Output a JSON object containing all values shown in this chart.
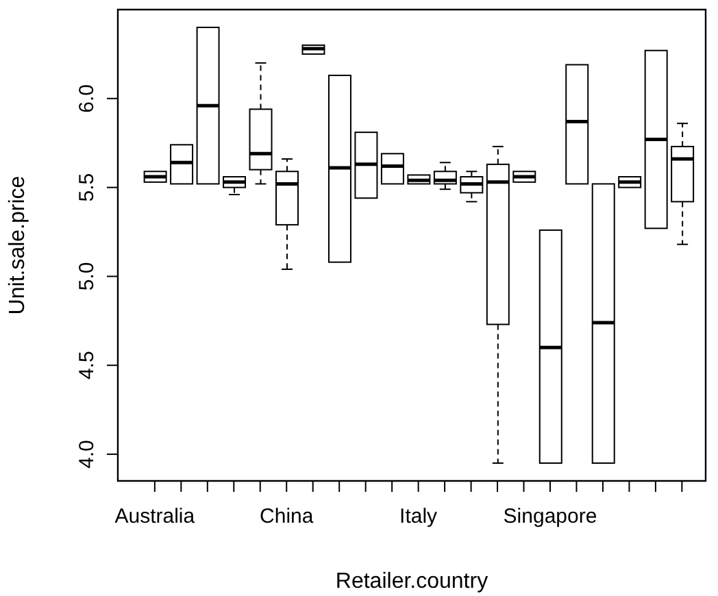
{
  "chart_data": {
    "type": "box",
    "xlabel": "Retailer.country",
    "ylabel": "Unit.sale.price",
    "categories": [
      "Australia",
      null,
      null,
      null,
      null,
      "China",
      null,
      null,
      null,
      null,
      "Italy",
      null,
      null,
      null,
      null,
      "Singapore",
      null,
      null,
      null,
      null,
      null
    ],
    "boxes": [
      {
        "low": 5.53,
        "q1": 5.53,
        "median": 5.56,
        "q3": 5.59,
        "high": 5.59
      },
      {
        "low": 5.52,
        "q1": 5.52,
        "median": 5.64,
        "q3": 5.74,
        "high": 5.74
      },
      {
        "low": 5.52,
        "q1": 5.52,
        "median": 5.96,
        "q3": 6.4,
        "high": 6.4
      },
      {
        "low": 5.46,
        "q1": 5.5,
        "median": 5.53,
        "q3": 5.56,
        "high": 5.56
      },
      {
        "low": 5.52,
        "q1": 5.6,
        "median": 5.69,
        "q3": 5.94,
        "high": 6.2
      },
      {
        "low": 5.04,
        "q1": 5.29,
        "median": 5.52,
        "q3": 5.59,
        "high": 5.66
      },
      {
        "low": 6.25,
        "q1": 6.25,
        "median": 6.28,
        "q3": 6.3,
        "high": 6.3
      },
      {
        "low": 5.08,
        "q1": 5.08,
        "median": 5.61,
        "q3": 6.13,
        "high": 6.13
      },
      {
        "low": 5.44,
        "q1": 5.44,
        "median": 5.63,
        "q3": 5.81,
        "high": 5.81
      },
      {
        "low": 5.52,
        "q1": 5.52,
        "median": 5.62,
        "q3": 5.69,
        "high": 5.69
      },
      {
        "low": 5.52,
        "q1": 5.52,
        "median": 5.54,
        "q3": 5.57,
        "high": 5.57
      },
      {
        "low": 5.49,
        "q1": 5.52,
        "median": 5.54,
        "q3": 5.59,
        "high": 5.64
      },
      {
        "low": 5.42,
        "q1": 5.47,
        "median": 5.52,
        "q3": 5.56,
        "high": 5.59
      },
      {
        "low": 3.95,
        "q1": 4.73,
        "median": 5.53,
        "q3": 5.63,
        "high": 5.73
      },
      {
        "low": 5.53,
        "q1": 5.53,
        "median": 5.56,
        "q3": 5.59,
        "high": 5.59
      },
      {
        "low": 3.95,
        "q1": 3.95,
        "median": 4.6,
        "q3": 5.26,
        "high": 5.26
      },
      {
        "low": 5.52,
        "q1": 5.52,
        "median": 5.87,
        "q3": 6.19,
        "high": 6.19
      },
      {
        "low": 3.95,
        "q1": 3.95,
        "median": 4.74,
        "q3": 5.52,
        "high": 5.52
      },
      {
        "low": 5.5,
        "q1": 5.5,
        "median": 5.53,
        "q3": 5.56,
        "high": 5.56
      },
      {
        "low": 5.27,
        "q1": 5.27,
        "median": 5.77,
        "q3": 6.27,
        "high": 6.27
      },
      {
        "low": 5.18,
        "q1": 5.42,
        "median": 5.66,
        "q3": 5.73,
        "high": 5.86
      }
    ],
    "ylim": [
      3.85,
      6.5
    ],
    "yticks": [
      {
        "value": 4,
        "label": "4.0"
      },
      {
        "value": 4.5,
        "label": "4.5"
      },
      {
        "value": 5,
        "label": "5.0"
      },
      {
        "value": 5.5,
        "label": "5.5"
      },
      {
        "value": 6,
        "label": "6.0"
      }
    ]
  }
}
